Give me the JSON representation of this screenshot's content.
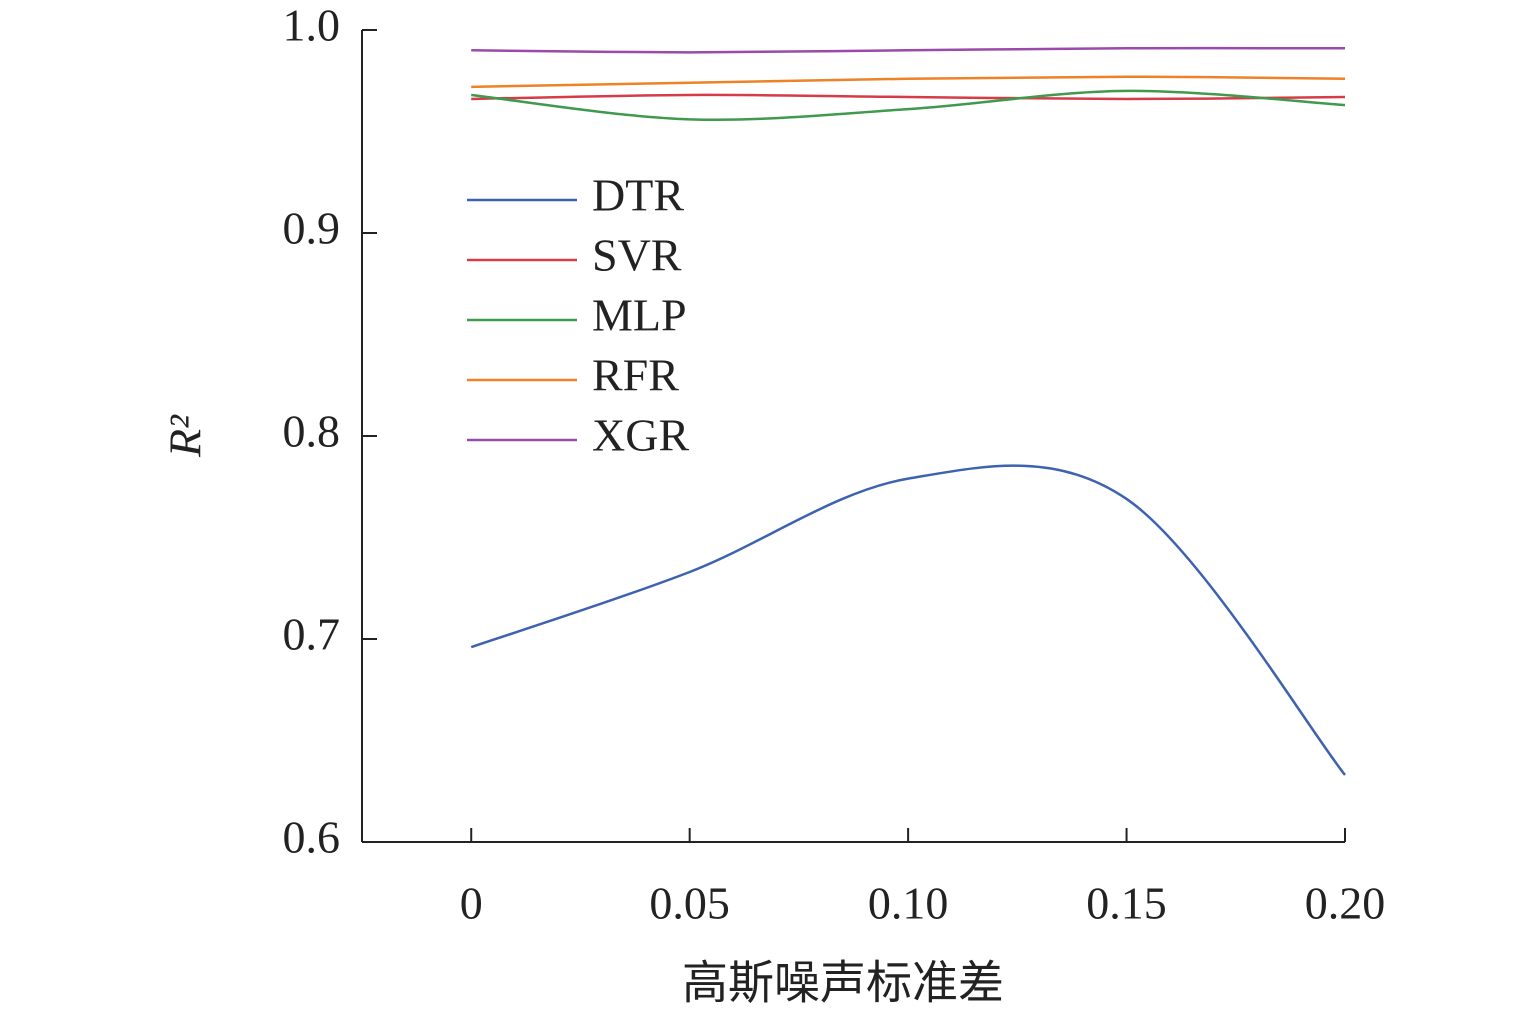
{
  "chart_data": {
    "type": "line",
    "x_label": "高斯噪声标准差",
    "y_label": "R²",
    "x": [
      0,
      0.05,
      0.1,
      0.15,
      0.2
    ],
    "series": [
      {
        "name": "DTR",
        "color": "#3d62b0",
        "values": [
          0.696,
          0.733,
          0.779,
          0.769,
          0.633
        ]
      },
      {
        "name": "SVR",
        "color": "#d63c47",
        "values": [
          0.966,
          0.968,
          0.967,
          0.966,
          0.967
        ]
      },
      {
        "name": "MLP",
        "color": "#3f9a4f",
        "values": [
          0.968,
          0.956,
          0.961,
          0.97,
          0.963
        ]
      },
      {
        "name": "RFR",
        "color": "#ee8227",
        "values": [
          0.972,
          0.974,
          0.976,
          0.977,
          0.976
        ]
      },
      {
        "name": "XGR",
        "color": "#9a4aab",
        "values": [
          0.99,
          0.989,
          0.99,
          0.991,
          0.991
        ]
      }
    ],
    "xlim": [
      -0.025,
      0.2
    ],
    "ylim": [
      0.6,
      1
    ],
    "xticks": [
      0,
      0.05,
      {
        "value": 0.1,
        "label": "0.10"
      },
      0.15,
      {
        "value": 0.2,
        "label": "0.20"
      }
    ],
    "yticks": [
      0.6,
      0.7,
      0.8,
      0.9,
      {
        "value": 1,
        "label": "1.0"
      }
    ],
    "legend": "upper left",
    "grid": false
  }
}
